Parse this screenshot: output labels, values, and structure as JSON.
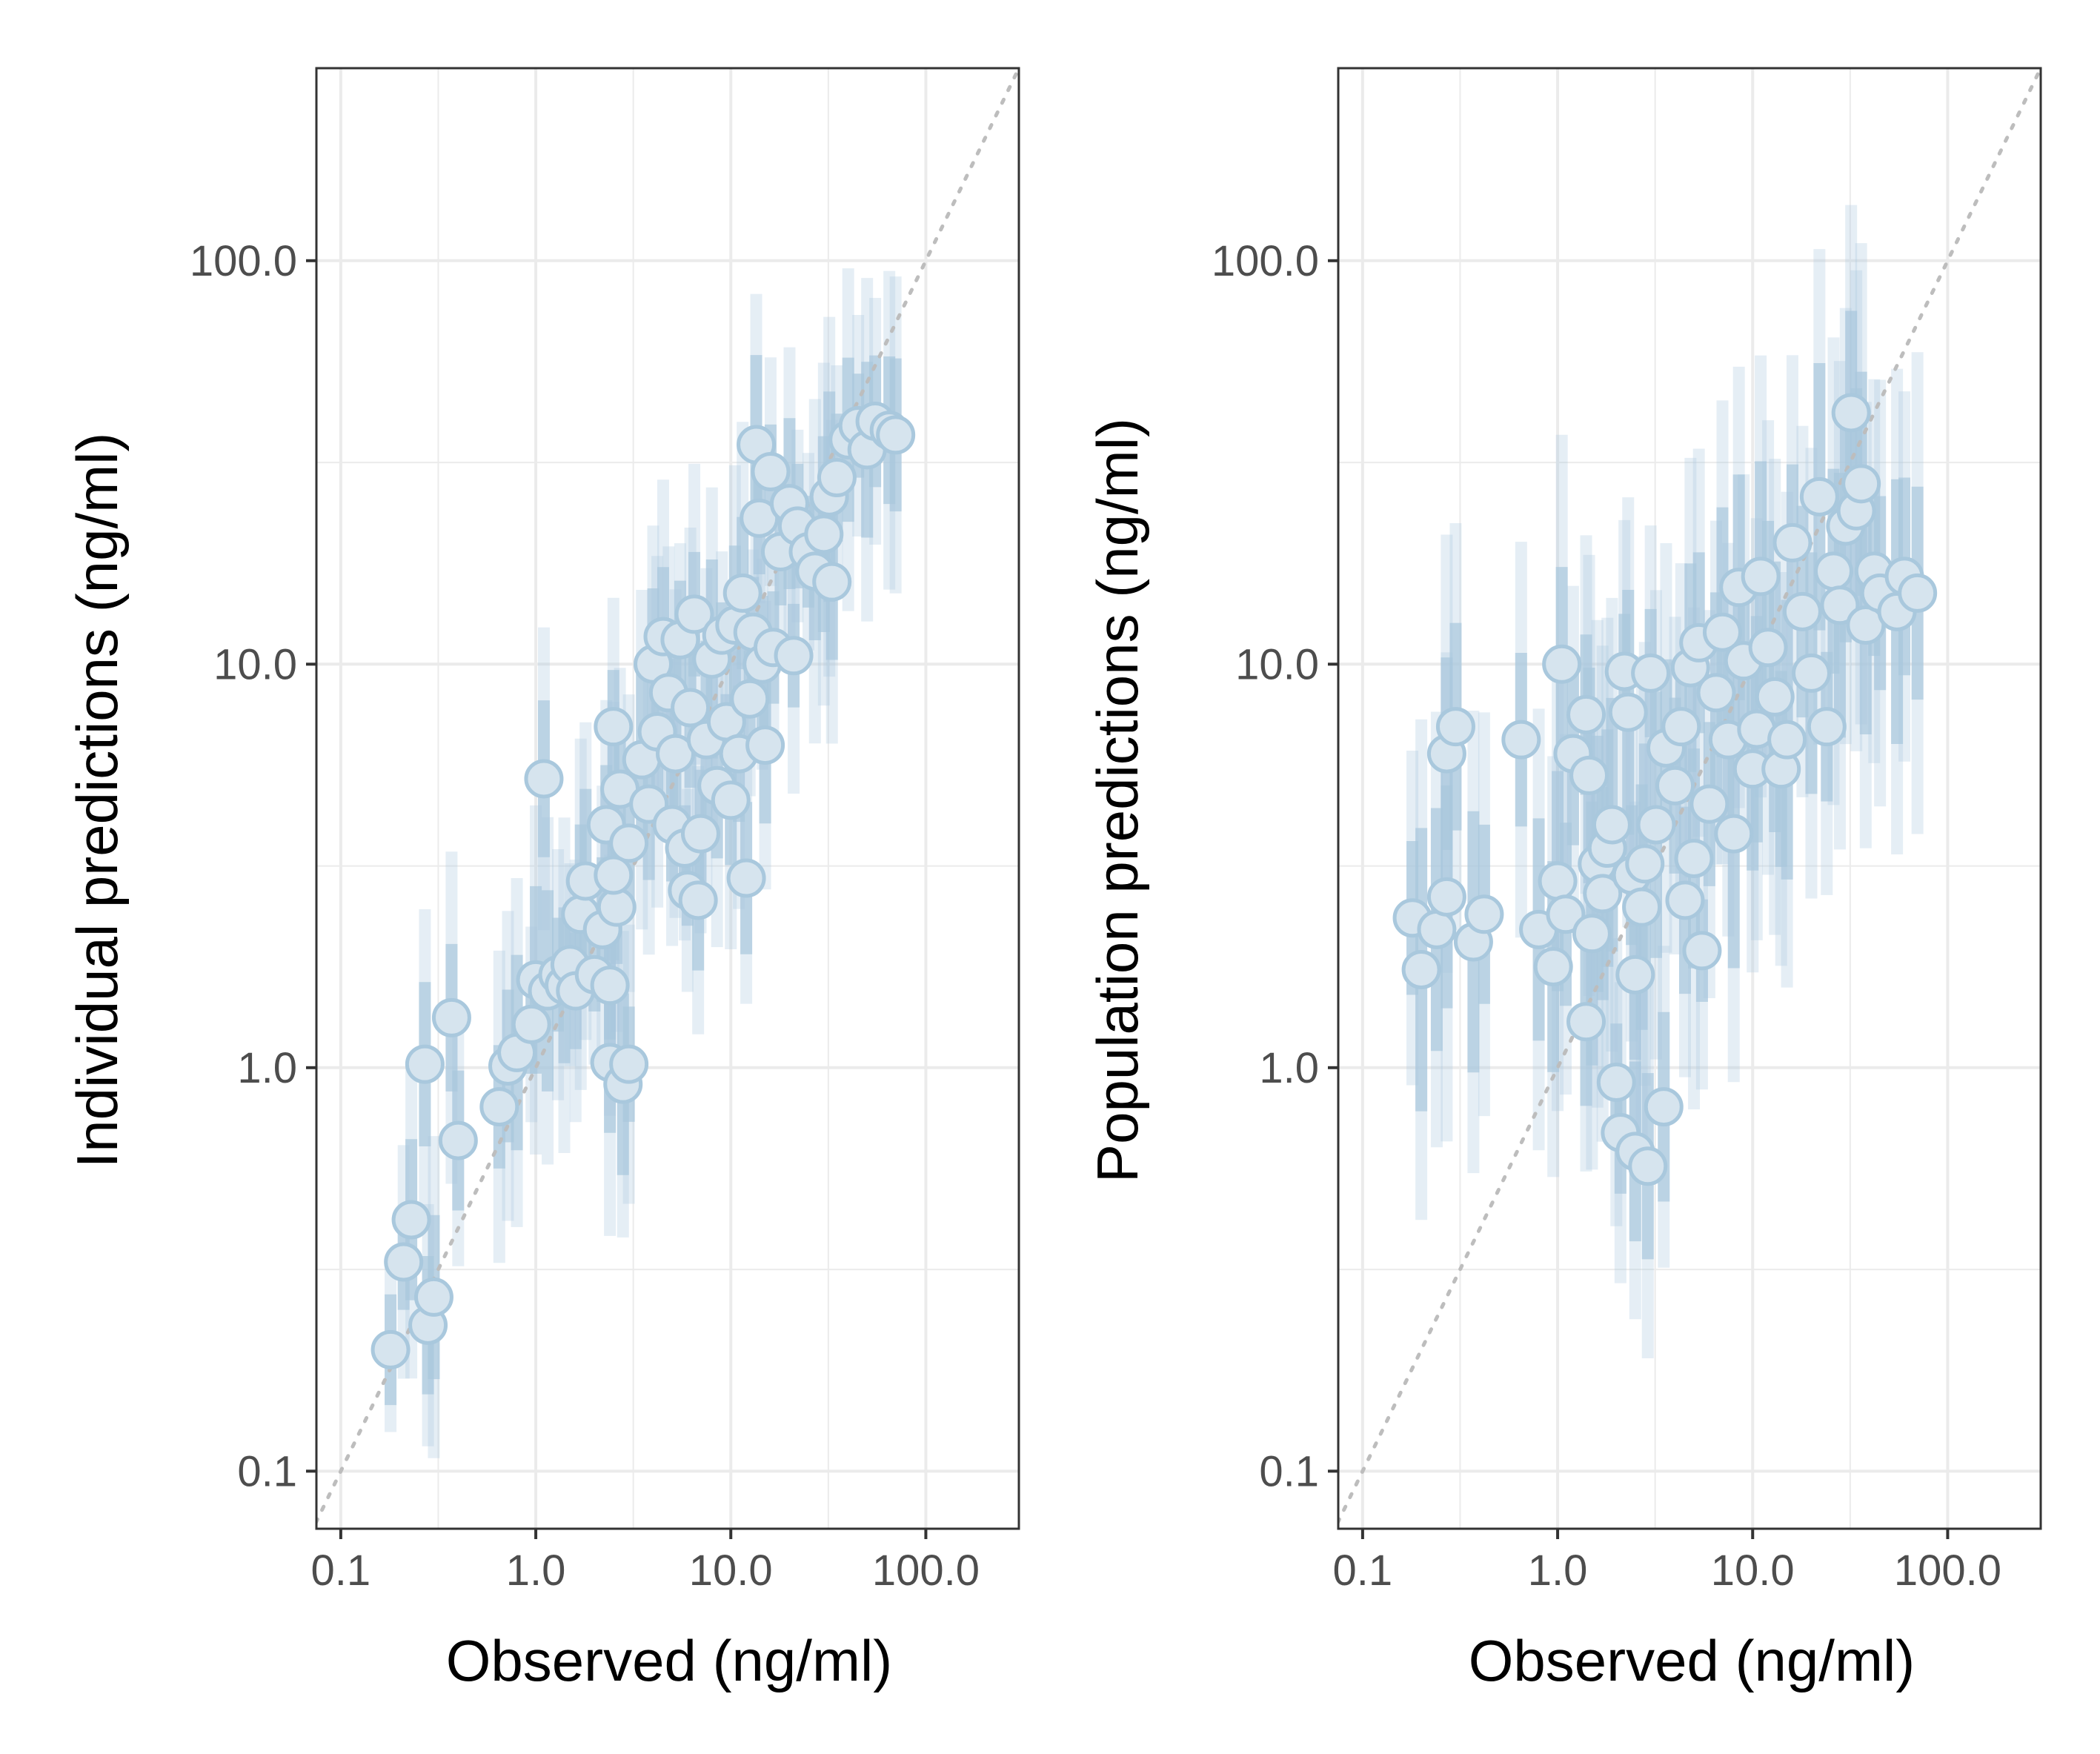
{
  "chart_data": [
    {
      "type": "scatter",
      "xlabel": "Observed (ng/ml)",
      "ylabel": "Individual predictions (ng/ml)",
      "xscale": "log10",
      "yscale": "log10",
      "xlim": [
        0.075,
        300
      ],
      "ylim": [
        0.072,
        300
      ],
      "xticks": [
        "0.1",
        "1.0",
        "10.0",
        "100.0"
      ],
      "yticks": [
        "0.1",
        "1.0",
        "10.0",
        "100.0"
      ],
      "grid": true,
      "legend": "none",
      "identity_line": "dotted grey y = x",
      "colors": {
        "point_fill": "#d6e4ee",
        "point_stroke": "#a9c8dd",
        "interval": "#a9c8dd"
      },
      "series": [
        {
          "values": [
            {
              "x": 0.18,
              "y": 0.2
            },
            {
              "x": 0.21,
              "y": 0.33
            },
            {
              "x": 0.23,
              "y": 0.42
            },
            {
              "x": 0.28,
              "y": 0.23
            },
            {
              "x": 0.3,
              "y": 0.27
            },
            {
              "x": 0.27,
              "y": 1.02
            },
            {
              "x": 0.37,
              "y": 1.33
            },
            {
              "x": 0.4,
              "y": 0.66
            },
            {
              "x": 0.65,
              "y": 0.8
            },
            {
              "x": 0.72,
              "y": 1.01
            },
            {
              "x": 0.8,
              "y": 1.09
            },
            {
              "x": 0.95,
              "y": 1.28
            },
            {
              "x": 1.0,
              "y": 1.65
            },
            {
              "x": 1.1,
              "y": 5.2
            },
            {
              "x": 1.15,
              "y": 1.55
            },
            {
              "x": 1.3,
              "y": 1.7
            },
            {
              "x": 1.4,
              "y": 1.6
            },
            {
              "x": 1.5,
              "y": 1.8
            },
            {
              "x": 1.6,
              "y": 1.55
            },
            {
              "x": 1.7,
              "y": 2.4
            },
            {
              "x": 1.8,
              "y": 2.9
            },
            {
              "x": 2.0,
              "y": 1.7
            },
            {
              "x": 2.2,
              "y": 2.2
            },
            {
              "x": 2.4,
              "y": 1.6
            },
            {
              "x": 2.4,
              "y": 1.03
            },
            {
              "x": 2.6,
              "y": 2.5
            },
            {
              "x": 2.8,
              "y": 0.91
            },
            {
              "x": 3.0,
              "y": 1.02
            },
            {
              "x": 2.5,
              "y": 7.0
            },
            {
              "x": 2.3,
              "y": 4.0
            },
            {
              "x": 2.7,
              "y": 4.9
            },
            {
              "x": 3.0,
              "y": 3.6
            },
            {
              "x": 2.5,
              "y": 3.0
            },
            {
              "x": 3.5,
              "y": 5.8
            },
            {
              "x": 3.8,
              "y": 4.5
            },
            {
              "x": 4.0,
              "y": 10.0
            },
            {
              "x": 4.2,
              "y": 6.8
            },
            {
              "x": 4.5,
              "y": 11.7
            },
            {
              "x": 4.8,
              "y": 8.5
            },
            {
              "x": 5.0,
              "y": 4.0
            },
            {
              "x": 5.2,
              "y": 6.0
            },
            {
              "x": 5.5,
              "y": 11.5
            },
            {
              "x": 5.8,
              "y": 3.5
            },
            {
              "x": 6.0,
              "y": 2.75
            },
            {
              "x": 6.2,
              "y": 7.8
            },
            {
              "x": 6.5,
              "y": 13.3
            },
            {
              "x": 6.8,
              "y": 2.6
            },
            {
              "x": 7.0,
              "y": 3.8
            },
            {
              "x": 7.5,
              "y": 6.5
            },
            {
              "x": 8.0,
              "y": 10.3
            },
            {
              "x": 8.5,
              "y": 5.0
            },
            {
              "x": 9.0,
              "y": 11.8
            },
            {
              "x": 9.5,
              "y": 7.2
            },
            {
              "x": 10.0,
              "y": 4.6
            },
            {
              "x": 10.5,
              "y": 12.5
            },
            {
              "x": 11.0,
              "y": 6.0
            },
            {
              "x": 11.5,
              "y": 15.0
            },
            {
              "x": 12.0,
              "y": 2.95
            },
            {
              "x": 12.5,
              "y": 8.2
            },
            {
              "x": 13.0,
              "y": 12.0
            },
            {
              "x": 13.5,
              "y": 35.0
            },
            {
              "x": 14.0,
              "y": 23.0
            },
            {
              "x": 14.5,
              "y": 10.0
            },
            {
              "x": 15.0,
              "y": 6.3
            },
            {
              "x": 16.0,
              "y": 30.0
            },
            {
              "x": 16.5,
              "y": 11.0
            },
            {
              "x": 18.0,
              "y": 19.0
            },
            {
              "x": 20.0,
              "y": 25.0
            },
            {
              "x": 21.0,
              "y": 10.5
            },
            {
              "x": 22.0,
              "y": 22.0
            },
            {
              "x": 25.0,
              "y": 19.0
            },
            {
              "x": 27.0,
              "y": 17.0
            },
            {
              "x": 30.0,
              "y": 21.0
            },
            {
              "x": 32.0,
              "y": 26.0
            },
            {
              "x": 33.0,
              "y": 16.0
            },
            {
              "x": 35.0,
              "y": 29.0
            },
            {
              "x": 40.0,
              "y": 36.0
            },
            {
              "x": 45.0,
              "y": 39.0
            },
            {
              "x": 50.0,
              "y": 34.0
            },
            {
              "x": 55.0,
              "y": 40.0
            },
            {
              "x": 65.0,
              "y": 38.0
            },
            {
              "x": 70.0,
              "y": 37.0
            }
          ]
        }
      ]
    },
    {
      "type": "scatter",
      "xlabel": "Observed (ng/ml)",
      "ylabel": "Population predictions (ng/ml)",
      "xscale": "log10",
      "yscale": "log10",
      "xlim": [
        0.075,
        300
      ],
      "ylim": [
        0.072,
        300
      ],
      "xticks": [
        "0.1",
        "1.0",
        "10.0",
        "100.0"
      ],
      "yticks": [
        "0.1",
        "1.0",
        "10.0",
        "100.0"
      ],
      "grid": true,
      "legend": "none",
      "identity_line": "dotted grey y = x",
      "colors": {
        "point_fill": "#d6e4ee",
        "point_stroke": "#a9c8dd",
        "interval": "#a9c8dd"
      },
      "series": [
        {
          "values": [
            {
              "x": 0.18,
              "y": 2.35
            },
            {
              "x": 0.2,
              "y": 1.75
            },
            {
              "x": 0.24,
              "y": 2.2
            },
            {
              "x": 0.27,
              "y": 2.65
            },
            {
              "x": 0.27,
              "y": 6.0
            },
            {
              "x": 0.3,
              "y": 7.0
            },
            {
              "x": 0.37,
              "y": 2.05
            },
            {
              "x": 0.42,
              "y": 2.4
            },
            {
              "x": 0.65,
              "y": 6.5
            },
            {
              "x": 0.8,
              "y": 2.2
            },
            {
              "x": 0.95,
              "y": 1.78
            },
            {
              "x": 1.0,
              "y": 2.9
            },
            {
              "x": 1.05,
              "y": 10.0
            },
            {
              "x": 1.1,
              "y": 2.4
            },
            {
              "x": 1.2,
              "y": 6.0
            },
            {
              "x": 1.4,
              "y": 7.5
            },
            {
              "x": 1.45,
              "y": 5.3
            },
            {
              "x": 1.4,
              "y": 1.3
            },
            {
              "x": 1.5,
              "y": 2.15
            },
            {
              "x": 1.6,
              "y": 3.2
            },
            {
              "x": 1.7,
              "y": 2.7
            },
            {
              "x": 1.8,
              "y": 3.5
            },
            {
              "x": 1.9,
              "y": 4.0
            },
            {
              "x": 2.0,
              "y": 0.92
            },
            {
              "x": 2.1,
              "y": 0.69
            },
            {
              "x": 2.2,
              "y": 9.6
            },
            {
              "x": 2.3,
              "y": 7.6
            },
            {
              "x": 2.4,
              "y": 3.0
            },
            {
              "x": 2.5,
              "y": 0.62
            },
            {
              "x": 2.5,
              "y": 1.7
            },
            {
              "x": 2.7,
              "y": 2.5
            },
            {
              "x": 2.8,
              "y": 3.2
            },
            {
              "x": 2.9,
              "y": 0.57
            },
            {
              "x": 3.0,
              "y": 9.5
            },
            {
              "x": 3.2,
              "y": 4.0
            },
            {
              "x": 3.5,
              "y": 0.8
            },
            {
              "x": 3.6,
              "y": 6.2
            },
            {
              "x": 4.0,
              "y": 5.0
            },
            {
              "x": 4.3,
              "y": 7.0
            },
            {
              "x": 4.5,
              "y": 2.6
            },
            {
              "x": 4.8,
              "y": 9.8
            },
            {
              "x": 5.0,
              "y": 3.3
            },
            {
              "x": 5.3,
              "y": 11.3
            },
            {
              "x": 5.5,
              "y": 1.95
            },
            {
              "x": 6.0,
              "y": 4.5
            },
            {
              "x": 6.5,
              "y": 8.5
            },
            {
              "x": 7.0,
              "y": 12.0
            },
            {
              "x": 7.5,
              "y": 6.5
            },
            {
              "x": 8.0,
              "y": 3.8
            },
            {
              "x": 8.5,
              "y": 15.5
            },
            {
              "x": 9.0,
              "y": 10.2
            },
            {
              "x": 10.0,
              "y": 5.5
            },
            {
              "x": 10.5,
              "y": 6.9
            },
            {
              "x": 11.0,
              "y": 16.5
            },
            {
              "x": 12.0,
              "y": 11.0
            },
            {
              "x": 13.0,
              "y": 8.3
            },
            {
              "x": 14.0,
              "y": 5.5
            },
            {
              "x": 15.0,
              "y": 6.5
            },
            {
              "x": 16.0,
              "y": 20.0
            },
            {
              "x": 18.0,
              "y": 13.5
            },
            {
              "x": 20.0,
              "y": 9.5
            },
            {
              "x": 22.0,
              "y": 26.0
            },
            {
              "x": 24.0,
              "y": 7.0
            },
            {
              "x": 26.0,
              "y": 17.0
            },
            {
              "x": 28.0,
              "y": 14.0
            },
            {
              "x": 30.0,
              "y": 22.0
            },
            {
              "x": 32.0,
              "y": 42.0
            },
            {
              "x": 34.0,
              "y": 24.0
            },
            {
              "x": 36.0,
              "y": 28.0
            },
            {
              "x": 38.0,
              "y": 12.5
            },
            {
              "x": 42.0,
              "y": 17.0
            },
            {
              "x": 45.0,
              "y": 15.0
            },
            {
              "x": 55.0,
              "y": 13.5
            },
            {
              "x": 60.0,
              "y": 16.5
            },
            {
              "x": 70.0,
              "y": 15.0
            }
          ]
        }
      ]
    }
  ]
}
